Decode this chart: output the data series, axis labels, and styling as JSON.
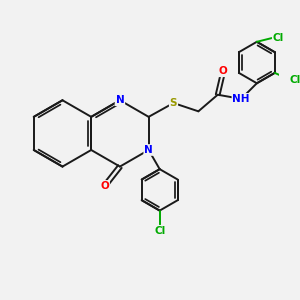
{
  "bg_color": "#f2f2f2",
  "bond_color": "#1a1a1a",
  "bond_width": 1.4,
  "atom_colors": {
    "N": "#0000ff",
    "O": "#ff0000",
    "S": "#999900",
    "Cl": "#00aa00",
    "H": "#008080",
    "C": "#1a1a1a"
  },
  "font_size": 7.5,
  "fig_size": [
    3.0,
    3.0
  ],
  "dpi": 100,
  "xlim": [
    0,
    10
  ],
  "ylim": [
    0,
    10
  ]
}
